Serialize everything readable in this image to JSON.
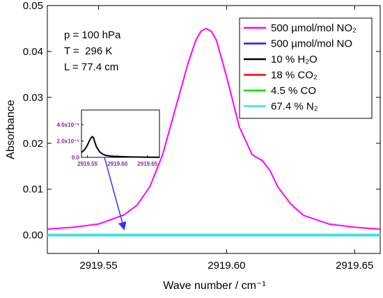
{
  "chart_data": {
    "type": "line",
    "title": "",
    "xlabel": "Wave number / cm⁻¹",
    "ylabel": "Absorbance",
    "xlim": [
      2919.53,
      2919.66
    ],
    "ylim": [
      -0.004,
      0.05
    ],
    "xticks": [
      {
        "value": 2919.55,
        "label": "2919.55"
      },
      {
        "value": 2919.6,
        "label": "2919.60"
      },
      {
        "value": 2919.65,
        "label": "2919.65"
      }
    ],
    "yticks": [
      {
        "value": 0.0,
        "label": "0.00"
      },
      {
        "value": 0.01,
        "label": "0.01"
      },
      {
        "value": 0.02,
        "label": "0.02"
      },
      {
        "value": 0.03,
        "label": "0.03"
      },
      {
        "value": 0.04,
        "label": "0.04"
      },
      {
        "value": 0.05,
        "label": "0.05"
      }
    ],
    "grid": false,
    "legend_position": "top-right",
    "series": [
      {
        "name": "500 µmol/mol NO₂",
        "color": "#ff00ff",
        "x": [
          2919.53,
          2919.54,
          2919.55,
          2919.56,
          2919.565,
          2919.57,
          2919.575,
          2919.58,
          2919.585,
          2919.588,
          2919.59,
          2919.592,
          2919.594,
          2919.596,
          2919.6,
          2919.605,
          2919.61,
          2919.614,
          2919.617,
          2919.62,
          2919.625,
          2919.63,
          2919.64,
          2919.65,
          2919.66
        ],
        "y": [
          0.0013,
          0.0017,
          0.0024,
          0.0044,
          0.0065,
          0.0105,
          0.0175,
          0.0275,
          0.0375,
          0.0425,
          0.0444,
          0.045,
          0.0444,
          0.0425,
          0.0345,
          0.0235,
          0.0175,
          0.0162,
          0.014,
          0.0105,
          0.0068,
          0.0043,
          0.0024,
          0.0017,
          0.0013
        ]
      },
      {
        "name": "500 µmol/mol NO",
        "color": "#1a1aff",
        "x": [
          2919.53,
          2919.66
        ],
        "y": [
          0.0,
          0.0
        ]
      },
      {
        "name": "10 % H₂O",
        "color": "#000000",
        "x": [
          2919.53,
          2919.66
        ],
        "y": [
          0.0,
          0.0
        ]
      },
      {
        "name": "18 % CO₂",
        "color": "#ff0000",
        "x": [
          2919.53,
          2919.66
        ],
        "y": [
          0.0,
          0.0
        ]
      },
      {
        "name": "4.5 % CO",
        "color": "#00dd00",
        "x": [
          2919.53,
          2919.66
        ],
        "y": [
          0.0,
          0.0
        ]
      },
      {
        "name": "67.4 % N₂",
        "color": "#44e0e0",
        "x": [
          2919.53,
          2919.66
        ],
        "y": [
          0.0,
          0.0
        ]
      }
    ],
    "annotations": [
      "p = 100 hPa",
      "T =  296 K",
      "L = 77.4 cm"
    ],
    "inset": {
      "xlim": [
        2919.54,
        2919.67
      ],
      "ylim": [
        0,
        5.8e-05
      ],
      "xticks": [
        {
          "value": 2919.55,
          "label": "2919.55"
        },
        {
          "value": 2919.6,
          "label": "2919.60"
        },
        {
          "value": 2919.65,
          "label": "2919.65"
        }
      ],
      "yticks": [
        {
          "value": 0.0,
          "label": "0.0"
        },
        {
          "value": 2e-05,
          "label": "2.0x10⁻⁵"
        },
        {
          "value": 4e-05,
          "label": "4.0x10⁻⁵"
        }
      ],
      "tick_color": "#7030a0",
      "series_name": "10 % H₂O",
      "x": [
        2919.54,
        2919.545,
        2919.55,
        2919.553,
        2919.556,
        2919.558,
        2919.56,
        2919.562,
        2919.565,
        2919.57,
        2919.575,
        2919.58,
        2919.59,
        2919.6,
        2919.62,
        2919.65,
        2919.67
      ],
      "y": [
        6e-06,
        9e-06,
        1.5e-05,
        2e-05,
        2.4e-05,
        2.55e-05,
        2.4e-05,
        1.9e-05,
        1.3e-05,
        7e-06,
        4e-06,
        2.5e-06,
        1.5e-06,
        1e-06,
        5e-07,
        2e-07,
        1e-07
      ]
    }
  }
}
